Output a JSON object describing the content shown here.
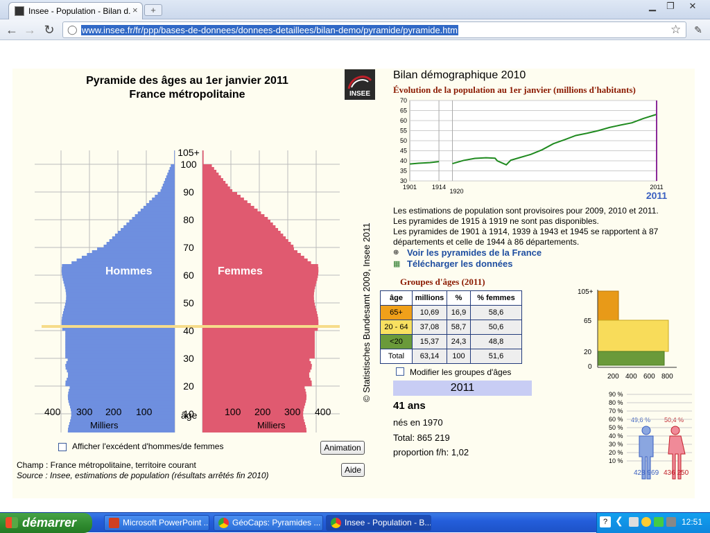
{
  "browser": {
    "tab_title": "Insee - Population - Bilan d...",
    "tab_close": "×",
    "new_tab": "+",
    "url": "www.insee.fr/fr/ppp/bases-de-donnees/donnees-detaillees/bilan-demo/pyramide/pyramide.htm",
    "back": "←",
    "forward": "→",
    "reload": "↻",
    "star": "☆",
    "wrench": "🔧",
    "minimize": "▭",
    "maximize": "❐",
    "close": "✕"
  },
  "pyramid": {
    "title_line1": "Pyramide des âges au 1er janvier 2011",
    "title_line2": "France métropolitaine",
    "logo_text": "INSEE",
    "men_label": "Hommes",
    "women_label": "Femmes",
    "age_axis_label": "âge",
    "unit_left": "Milliers",
    "unit_right": "Milliers",
    "age_ticks": [
      "105+",
      "100",
      "90",
      "80",
      "70",
      "60",
      "50",
      "40",
      "30",
      "20",
      "10",
      "0"
    ],
    "x_ticks_left": [
      "400",
      "300",
      "200",
      "100"
    ],
    "x_ticks_right": [
      "100",
      "200",
      "300",
      "400"
    ],
    "copyright": "© Statistisches Bundesamt 2009, Insee 2011",
    "checkbox_label": "Afficher l'excédent d'hommes/de femmes",
    "animation_button": "Animation",
    "aide_button": "Aide",
    "champ": "Champ : France métropolitaine, territoire courant",
    "source": "Source : Insee, estimations de population (résultats arrêtés fin 2010)",
    "colors": {
      "men": "#6e8fdf",
      "women": "#e05a70",
      "highlight": "#f6dc8a"
    }
  },
  "chart_data": {
    "type": "line",
    "title": "Évolution de la population au 1er janvier (millions d'habitants)",
    "x": [
      1901,
      1905,
      1910,
      1914,
      1920,
      1925,
      1930,
      1935,
      1939,
      1940,
      1944,
      1946,
      1950,
      1955,
      1960,
      1965,
      1970,
      1975,
      1980,
      1985,
      1990,
      1995,
      2000,
      2005,
      2011
    ],
    "values": [
      38.4,
      38.8,
      39.1,
      39.6,
      38.6,
      40.2,
      41.2,
      41.5,
      41.3,
      40.0,
      38.0,
      40.3,
      41.6,
      43.2,
      45.5,
      48.5,
      50.5,
      52.6,
      53.7,
      55.0,
      56.6,
      57.8,
      58.9,
      61.0,
      63.1
    ],
    "ylim": [
      30,
      70
    ],
    "y_ticks": [
      "70",
      "65",
      "60",
      "55",
      "50",
      "45",
      "40",
      "35",
      "30"
    ],
    "x_ticks": [
      "1901",
      "1914",
      "1920",
      "2011"
    ],
    "highlight_year": "2011",
    "grid": true
  },
  "right": {
    "bilan_title": "Bilan démographique 2010",
    "notes": [
      "Les estimations de population sont provisoires pour 2009, 2010 et 2011.",
      "Les pyramides de 1915 à 1919 ne sont pas disponibles.",
      "Les pyramides de 1901 à 1914, 1939 à 1943 et 1945 se rapportent à 87",
      "départements et celle de 1944 à 86 départements."
    ],
    "link1": "Voir les pyramides de la France",
    "link2": "Télécharger les données",
    "groups_title": "Groupes d'âges (2011)",
    "table_headers": [
      "âge",
      "millions",
      "%",
      "% femmes"
    ],
    "table_rows": [
      [
        "65+",
        "10,69",
        "16,9",
        "58,6"
      ],
      [
        "20 - 64",
        "37,08",
        "58,7",
        "50,6"
      ],
      [
        "<20",
        "15,37",
        "24,3",
        "48,8"
      ],
      [
        "Total",
        "63,14",
        "100",
        "51,6"
      ]
    ],
    "row_colors": [
      "#f0a01a",
      "#f8e060",
      "#6a9a3a",
      "#ffffff"
    ],
    "modify_label": "Modifier les groupes d'âges",
    "year_box": "2011",
    "age_big": "41 ans",
    "born": "nés en 1970",
    "total": "Total: 865 219",
    "proportion": "proportion f/h: 1,02",
    "mini_y": [
      "105+",
      "65",
      "20",
      "0"
    ],
    "mini_x": [
      "200",
      "400",
      "600",
      "800"
    ],
    "pct_ticks": [
      "90 %",
      "80 %",
      "70 %",
      "60 %",
      "50 %",
      "40 %",
      "30 %",
      "20 %",
      "10 %"
    ],
    "men_pct": "49,6 %",
    "women_pct": "50,4 %",
    "men_count": "428 969",
    "women_count": "436 250"
  },
  "taskbar": {
    "start": "démarrer",
    "items": [
      "Microsoft PowerPoint ...",
      "GéoCaps: Pyramides ...",
      "Insee - Population - B..."
    ],
    "clock": "12:51"
  }
}
